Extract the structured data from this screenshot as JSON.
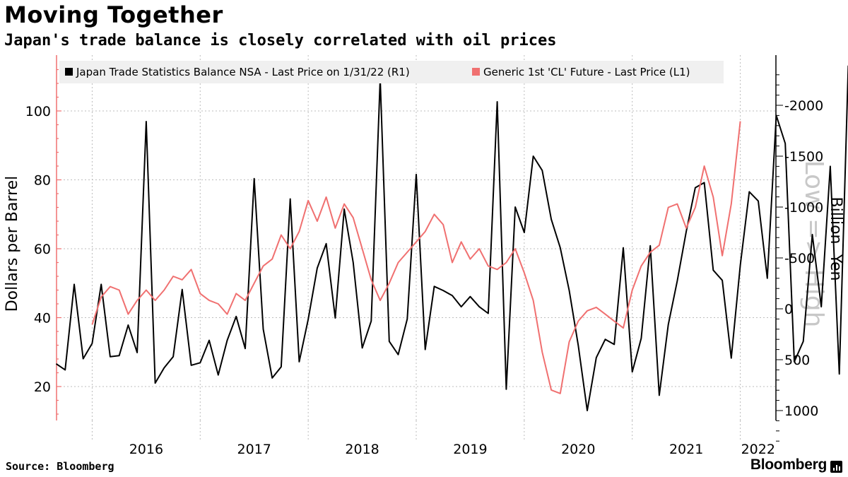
{
  "title": "Moving Together",
  "subtitle": "Japan's trade balance is closely correlated with oil prices",
  "source": "Source: Bloomberg",
  "brand": "Bloomberg",
  "chart_data": {
    "type": "line",
    "legend_placement": "top-left",
    "grid": true,
    "watermark": "Low => High",
    "x_ticks": [
      "2016",
      "2017",
      "2018",
      "2019",
      "2020",
      "2021",
      "2022"
    ],
    "left_axis": {
      "label": "Dollars per Barrel",
      "range": [
        10,
        115
      ],
      "ticks": [
        20,
        40,
        60,
        80,
        100
      ],
      "color": "#f07070"
    },
    "right_axis": {
      "label": "Billion  Yen",
      "inverted": true,
      "range": [
        1400,
        -2400
      ],
      "ticks": [
        1000,
        500,
        0,
        -500,
        -1000,
        -1500,
        -2000
      ],
      "tick_labels": [
        "1000",
        "500",
        "0",
        "-500",
        "-1000",
        "-1500",
        "-2000"
      ],
      "color": "#000000"
    },
    "series": [
      {
        "name": "Japan Trade Statistics Balance NSA - Last Price on 1/31/22 (R1)",
        "axis": "right",
        "color": "#000000",
        "start": "2015-09",
        "values": [
          540,
          600,
          -240,
          490,
          340,
          -240,
          470,
          460,
          160,
          430,
          -1840,
          730,
          580,
          470,
          -190,
          555,
          530,
          310,
          650,
          310,
          75,
          390,
          -1280,
          200,
          680,
          570,
          -1080,
          520,
          105,
          -400,
          -640,
          90,
          -980,
          -455,
          385,
          120,
          -2260,
          320,
          450,
          100,
          -1320,
          400,
          -220,
          -180,
          -130,
          -20,
          -120,
          -20,
          45,
          -2035,
          790,
          -1000,
          -750,
          -1500,
          -1360,
          -880,
          -600,
          -180,
          360,
          1000,
          480,
          300,
          350,
          -600,
          620,
          290,
          -620,
          850,
          155,
          -275,
          -760,
          -1190,
          -1240,
          -380,
          -280,
          485,
          -430,
          -1150,
          -1060,
          -300,
          -1900,
          -1625,
          520,
          320,
          -730,
          -20,
          -1400,
          640,
          -2390
        ]
      },
      {
        "name": "Generic 1st 'CL' Future - Last Price (L1)",
        "axis": "left",
        "color": "#f07070",
        "start": "2016-01",
        "values": [
          38,
          46,
          49,
          48,
          41,
          45,
          48,
          45,
          48,
          52,
          51,
          54,
          47,
          45,
          44,
          41,
          47,
          45,
          50,
          55,
          57,
          64,
          60,
          65,
          74,
          68,
          75,
          66,
          73,
          69,
          60,
          51,
          45,
          50,
          56,
          59,
          62,
          65,
          70,
          67,
          56,
          62,
          57,
          60,
          55,
          54,
          56,
          60,
          53,
          45,
          30,
          19,
          18,
          33,
          39,
          42,
          43,
          41,
          39,
          37,
          48,
          55,
          59,
          61,
          72,
          73,
          66,
          72,
          84,
          75,
          58,
          73,
          97
        ]
      }
    ]
  }
}
